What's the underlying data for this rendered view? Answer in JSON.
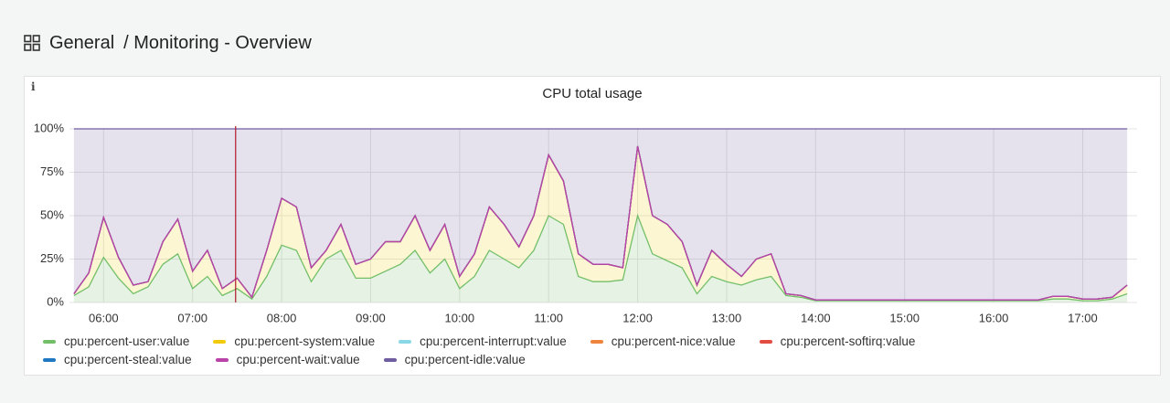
{
  "header": {
    "folder": "General",
    "title": "/ Monitoring - Overview"
  },
  "chart_data": {
    "type": "area",
    "stacked": true,
    "title": "CPU total usage",
    "x": [
      "05:40",
      "05:50",
      "06:00",
      "06:10",
      "06:20",
      "06:30",
      "06:40",
      "06:50",
      "07:00",
      "07:10",
      "07:20",
      "07:30",
      "07:40",
      "07:50",
      "08:00",
      "08:10",
      "08:20",
      "08:30",
      "08:40",
      "08:50",
      "09:00",
      "09:10",
      "09:20",
      "09:30",
      "09:40",
      "09:50",
      "10:00",
      "10:10",
      "10:20",
      "10:30",
      "10:40",
      "10:50",
      "11:00",
      "11:10",
      "11:20",
      "11:30",
      "11:40",
      "11:50",
      "12:00",
      "12:10",
      "12:20",
      "12:30",
      "12:40",
      "12:50",
      "13:00",
      "13:10",
      "13:20",
      "13:30",
      "13:40",
      "13:50",
      "14:00",
      "14:10",
      "14:20",
      "14:30",
      "14:40",
      "14:50",
      "15:00",
      "15:10",
      "15:20",
      "15:30",
      "15:40",
      "15:50",
      "16:00",
      "16:10",
      "16:20",
      "16:30",
      "16:40",
      "16:50",
      "17:00",
      "17:10",
      "17:20",
      "17:30"
    ],
    "xlim": [
      "05:37",
      "17:33"
    ],
    "xticks": [
      "06:00",
      "07:00",
      "08:00",
      "09:00",
      "10:00",
      "11:00",
      "12:00",
      "13:00",
      "14:00",
      "15:00",
      "16:00",
      "17:00"
    ],
    "ylim": [
      0,
      100
    ],
    "yticks": [
      {
        "value": 0,
        "label": "0%"
      },
      {
        "value": 25,
        "label": "25%"
      },
      {
        "value": 50,
        "label": "50%"
      },
      {
        "value": 75,
        "label": "75%"
      },
      {
        "value": 100,
        "label": "100%"
      }
    ],
    "grid": true,
    "annotations": [
      {
        "x": "07:29",
        "color": "#b0172a"
      }
    ],
    "series": [
      {
        "name": "cpu:percent-user:value",
        "color": "#73bf69",
        "values": [
          4,
          9,
          26,
          14,
          5,
          9,
          22,
          28,
          8,
          15,
          4,
          8,
          2,
          15,
          33,
          30,
          12,
          25,
          30,
          14,
          14,
          18,
          22,
          30,
          17,
          25,
          8,
          15,
          30,
          25,
          20,
          30,
          50,
          45,
          15,
          12,
          12,
          13,
          50,
          28,
          24,
          20,
          5,
          15,
          12,
          10,
          13,
          15,
          4,
          3,
          1,
          1,
          1,
          1,
          1,
          1,
          1,
          1,
          1,
          1,
          1,
          1,
          1,
          1,
          1,
          1,
          2,
          2,
          1,
          1,
          2,
          5
        ]
      },
      {
        "name": "cpu:percent-system:value",
        "color": "#f2cc0c",
        "values": [
          1,
          8,
          23,
          12,
          5,
          3,
          13,
          20,
          10,
          15,
          4,
          6,
          1,
          15,
          27,
          25,
          8,
          5,
          15,
          8,
          11,
          17,
          13,
          20,
          13,
          20,
          7,
          13,
          25,
          20,
          12,
          20,
          35,
          25,
          13,
          10,
          10,
          7,
          40,
          22,
          21,
          15,
          5,
          15,
          10,
          5,
          12,
          13,
          1,
          1,
          0.5,
          0.5,
          0.5,
          0.5,
          0.5,
          0.5,
          0.5,
          0.5,
          0.5,
          0.5,
          0.5,
          0.5,
          0.5,
          0.5,
          0.5,
          0.5,
          1.5,
          1.5,
          1,
          1,
          1,
          5
        ]
      },
      {
        "name": "cpu:percent-interrupt:value",
        "color": "#8ad8e6",
        "values": [
          0,
          0,
          0,
          0,
          0,
          0,
          0,
          0,
          0,
          0,
          0,
          0,
          0,
          0,
          0,
          0,
          0,
          0,
          0,
          0,
          0,
          0,
          0,
          0,
          0,
          0,
          0,
          0,
          0,
          0,
          0,
          0,
          0,
          0,
          0,
          0,
          0,
          0,
          0,
          0,
          0,
          0,
          0,
          0,
          0,
          0,
          0,
          0,
          0,
          0,
          0,
          0,
          0,
          0,
          0,
          0,
          0,
          0,
          0,
          0,
          0,
          0,
          0,
          0,
          0,
          0,
          0,
          0,
          0,
          0,
          0,
          0
        ]
      },
      {
        "name": "cpu:percent-nice:value",
        "color": "#ef843c",
        "values": [
          0,
          0,
          0,
          0,
          0,
          0,
          0,
          0,
          0,
          0,
          0,
          0,
          0,
          0,
          0,
          0,
          0,
          0,
          0,
          0,
          0,
          0,
          0,
          0,
          0,
          0,
          0,
          0,
          0,
          0,
          0,
          0,
          0,
          0,
          0,
          0,
          0,
          0,
          0,
          0,
          0,
          0,
          0,
          0,
          0,
          0,
          0,
          0,
          0,
          0,
          0,
          0,
          0,
          0,
          0,
          0,
          0,
          0,
          0,
          0,
          0,
          0,
          0,
          0,
          0,
          0,
          0,
          0,
          0,
          0,
          0,
          0
        ]
      },
      {
        "name": "cpu:percent-softirq:value",
        "color": "#e24d42",
        "values": [
          0,
          0,
          0,
          0,
          0,
          0,
          0,
          0,
          0,
          0,
          0,
          0,
          0,
          0,
          0,
          0,
          0,
          0,
          0,
          0,
          0,
          0,
          0,
          0,
          0,
          0,
          0,
          0,
          0,
          0,
          0,
          0,
          0,
          0,
          0,
          0,
          0,
          0,
          0,
          0,
          0,
          0,
          0,
          0,
          0,
          0,
          0,
          0,
          0,
          0,
          0,
          0,
          0,
          0,
          0,
          0,
          0,
          0,
          0,
          0,
          0,
          0,
          0,
          0,
          0,
          0,
          0,
          0,
          0,
          0,
          0,
          0
        ]
      },
      {
        "name": "cpu:percent-steal:value",
        "color": "#1f78c1",
        "values": [
          0,
          0,
          0,
          0,
          0,
          0,
          0,
          0,
          0,
          0,
          0,
          0,
          0,
          0,
          0,
          0,
          0,
          0,
          0,
          0,
          0,
          0,
          0,
          0,
          0,
          0,
          0,
          0,
          0,
          0,
          0,
          0,
          0,
          0,
          0,
          0,
          0,
          0,
          0,
          0,
          0,
          0,
          0,
          0,
          0,
          0,
          0,
          0,
          0,
          0,
          0,
          0,
          0,
          0,
          0,
          0,
          0,
          0,
          0,
          0,
          0,
          0,
          0,
          0,
          0,
          0,
          0,
          0,
          0,
          0,
          0,
          0
        ]
      },
      {
        "name": "cpu:percent-wait:value",
        "color": "#ba43a9",
        "values": [
          0,
          0,
          0,
          0,
          0,
          0,
          0,
          0,
          0,
          0,
          0,
          0,
          0,
          0,
          0,
          0,
          0,
          0,
          0,
          0,
          0,
          0,
          0,
          0,
          0,
          0,
          0,
          0,
          0,
          0,
          0,
          0,
          0,
          0,
          0,
          0,
          0,
          0,
          0,
          0,
          0,
          0,
          0,
          0,
          0,
          0,
          0,
          0,
          0,
          0,
          0,
          0,
          0,
          0,
          0,
          0,
          0,
          0,
          0,
          0,
          0,
          0,
          0,
          0,
          0,
          0,
          0,
          0,
          0,
          0,
          0,
          0
        ]
      },
      {
        "name": "cpu:percent-idle:value",
        "color": "#705da0",
        "values": [
          95,
          83,
          51,
          74,
          90,
          88,
          65,
          52,
          82,
          70,
          92,
          86,
          97,
          70,
          40,
          45,
          80,
          70,
          55,
          78,
          75,
          65,
          65,
          50,
          70,
          55,
          85,
          72,
          45,
          55,
          68,
          50,
          15,
          30,
          72,
          78,
          78,
          80,
          10,
          50,
          55,
          65,
          90,
          70,
          78,
          85,
          75,
          72,
          95,
          96,
          98.5,
          98.5,
          98.5,
          98.5,
          98.5,
          98.5,
          98.5,
          98.5,
          98.5,
          98.5,
          98.5,
          98.5,
          98.5,
          98.5,
          98.5,
          98.5,
          96.5,
          96.5,
          98,
          98,
          97,
          90
        ]
      }
    ]
  }
}
